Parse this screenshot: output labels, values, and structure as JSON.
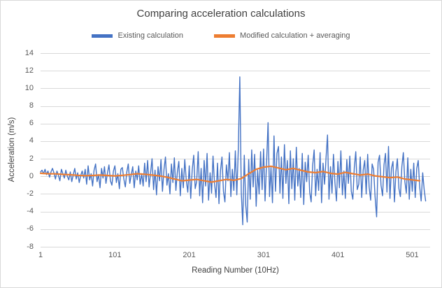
{
  "colors": {
    "grid": "#d9d9d9",
    "text": "#595959",
    "title": "#404040",
    "series_existing": "#4472C4",
    "series_modified": "#ED7D31"
  },
  "chart_data": {
    "type": "line",
    "title": "Comparing acceleration calculations",
    "xlabel": "Reading Number  (10Hz)",
    "ylabel": "Acceleration (m/s)",
    "x_ticks": [
      1,
      101,
      201,
      301,
      401,
      501
    ],
    "y_ticks": [
      14,
      12,
      10,
      8,
      6,
      4,
      2,
      0,
      -2,
      -4,
      -6,
      -8
    ],
    "xlim": [
      1,
      525
    ],
    "ylim": [
      -8,
      14
    ],
    "grid": true,
    "legend_position": "top",
    "series": [
      {
        "name": "Existing calculation",
        "color": "#4472C4",
        "width": 1.4,
        "x_start": 1,
        "x_step": 2,
        "values": [
          0.5,
          0.7,
          0.3,
          0.8,
          0.2,
          0.6,
          -0.1,
          0.5,
          0.9,
          0.4,
          -0.3,
          0.6,
          0.1,
          -0.5,
          0.8,
          0.3,
          -0.2,
          0.7,
          0.0,
          -0.4,
          0.5,
          -0.6,
          0.2,
          0.9,
          -0.3,
          0.4,
          -0.7,
          0.1,
          0.6,
          -0.2,
          0.8,
          -0.9,
          1.2,
          -0.4,
          0.3,
          -1.1,
          0.7,
          1.4,
          -0.6,
          0.2,
          -1.3,
          0.9,
          -0.2,
          1.1,
          -0.8,
          0.4,
          1.3,
          -0.5,
          -1.0,
          0.6,
          1.2,
          -0.7,
          0.3,
          -1.4,
          0.8,
          1.0,
          -0.3,
          -1.2,
          0.5,
          1.4,
          -0.8,
          0.2,
          1.1,
          -1.3,
          0.6,
          -0.4,
          1.2,
          -0.9,
          0.3,
          -1.1,
          1.5,
          -0.6,
          1.8,
          -1.2,
          0.4,
          2.0,
          -1.5,
          0.7,
          -2.1,
          1.1,
          -0.5,
          1.9,
          -1.7,
          0.8,
          2.2,
          -1.0,
          0.3,
          -2.0,
          1.4,
          -0.7,
          2.1,
          -1.6,
          0.5,
          1.7,
          -2.2,
          0.9,
          -1.3,
          1.9,
          -0.4,
          -1.8,
          1.2,
          -2.5,
          0.7,
          2.4,
          -1.4,
          -0.6,
          2.8,
          -2.2,
          0.9,
          -3.0,
          1.8,
          -1.1,
          2.6,
          -2.7,
          0.4,
          -1.9,
          2.3,
          -0.8,
          -2.4,
          1.5,
          -3.1,
          0.6,
          2.2,
          -1.7,
          -2.9,
          1.3,
          -0.5,
          2.7,
          -2.3,
          0.8,
          -1.6,
          2.9,
          -2.1,
          3.2,
          11.3,
          -1.8,
          -5.5,
          2.4,
          -3.3,
          -5.2,
          1.9,
          -2.6,
          3.0,
          -1.2,
          2.5,
          -3.4,
          0.7,
          -2.0,
          2.8,
          -1.5,
          3.1,
          -2.8,
          1.4,
          6.1,
          -2.3,
          1.0,
          -3.0,
          4.6,
          -1.7,
          2.6,
          3.4,
          -1.9,
          2.2,
          -2.5,
          3.6,
          -0.8,
          1.8,
          -3.1,
          2.9,
          -1.4,
          2.0,
          -2.7,
          3.3,
          -1.1,
          0.9,
          -2.4,
          2.6,
          -3.2,
          1.6,
          -0.6,
          2.4,
          -1.8,
          -2.9,
          1.2,
          3.0,
          -2.2,
          0.8,
          -1.6,
          2.7,
          -3.0,
          1.5,
          -0.9,
          2.1,
          4.7,
          -2.6,
          1.1,
          -1.9,
          2.5,
          -0.7,
          -2.8,
          1.7,
          -1.3,
          2.9,
          -2.1,
          0.6,
          -2.5,
          1.9,
          -0.8,
          2.3,
          -1.7,
          -2.6,
          1.0,
          2.8,
          -1.5,
          -0.9,
          2.2,
          -2.4,
          0.7,
          1.8,
          -2.0,
          2.5,
          -1.2,
          -2.7,
          1.4,
          0.8,
          -2.3,
          -4.6,
          1.6,
          2.4,
          -1.0,
          -2.2,
          1.3,
          2.6,
          -1.8,
          3.4,
          -2.5,
          0.9,
          1.7,
          -2.9,
          0.5,
          2.0,
          -1.4,
          -2.3,
          1.1,
          2.7,
          -0.6,
          -1.9,
          2.1,
          -2.6,
          0.8,
          -1.7,
          1.5,
          -2.4,
          0.9,
          1.8,
          -1.2,
          -2.8,
          0.4,
          -1.5,
          -2.8
        ]
      },
      {
        "name": "Modified calculation + averaging",
        "color": "#ED7D31",
        "width": 2.2,
        "x_start": 1,
        "x_step": 10,
        "values": [
          0.35,
          0.3,
          0.28,
          0.22,
          0.18,
          0.12,
          0.08,
          0.1,
          0.15,
          0.1,
          0.05,
          0.12,
          0.2,
          0.3,
          0.24,
          0.15,
          0.05,
          -0.1,
          -0.3,
          -0.5,
          -0.42,
          -0.35,
          -0.5,
          -0.65,
          -0.5,
          -0.35,
          -0.45,
          -0.25,
          0.3,
          0.8,
          1.05,
          1.15,
          0.95,
          0.75,
          0.9,
          0.7,
          0.5,
          0.42,
          0.55,
          0.35,
          0.25,
          0.45,
          0.3,
          0.15,
          0.25,
          0.05,
          -0.05,
          -0.15,
          -0.08,
          -0.3,
          -0.4,
          -0.5
        ]
      }
    ]
  }
}
